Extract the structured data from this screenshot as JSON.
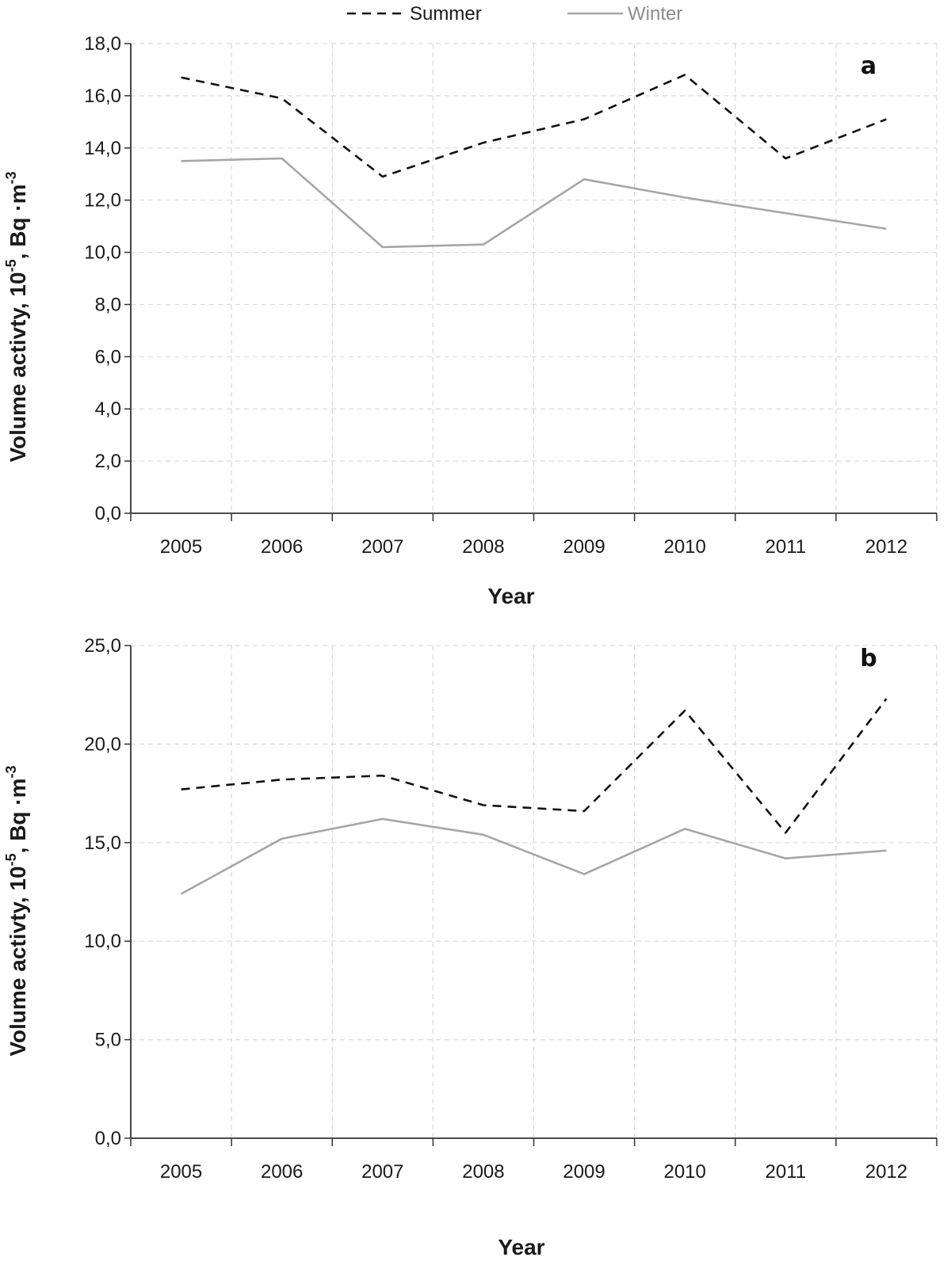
{
  "legend": {
    "summer_label": "Summer",
    "winter_label": "Winter"
  },
  "colors": {
    "summer": "#111111",
    "winter": "#a6a6a6",
    "grid": "#d9d9d9",
    "axis": "#333333"
  },
  "chart_data": [
    {
      "type": "line",
      "panel": "a",
      "categories": [
        "2005",
        "2006",
        "2007",
        "2008",
        "2009",
        "2010",
        "2011",
        "2012"
      ],
      "series": [
        {
          "name": "Summer",
          "style": "dashed",
          "values": [
            16.7,
            15.9,
            12.9,
            14.2,
            15.1,
            16.8,
            13.6,
            15.1
          ]
        },
        {
          "name": "Winter",
          "style": "solid",
          "values": [
            13.5,
            13.6,
            10.2,
            10.3,
            12.8,
            12.1,
            11.5,
            10.9
          ]
        }
      ],
      "ylim": [
        0,
        18
      ],
      "yticks": [
        "0,0",
        "2,0",
        "4,0",
        "6,0",
        "8,0",
        "10,0",
        "12,0",
        "14,0",
        "16,0",
        "18,0"
      ],
      "xlabel": "Year",
      "ylabel": "Volume  activty, 10-5, Bq ·m-3",
      "ylabel_parts": {
        "main": "Volume  activty, 10",
        "sup1": "-5",
        "mid": ", Bq ·m",
        "sup2": "-3"
      },
      "grid": true
    },
    {
      "type": "line",
      "panel": "b",
      "categories": [
        "2005",
        "2006",
        "2007",
        "2008",
        "2009",
        "2010",
        "2011",
        "2012"
      ],
      "series": [
        {
          "name": "Summer",
          "style": "dashed",
          "values": [
            17.7,
            18.2,
            18.4,
            16.9,
            16.6,
            21.7,
            15.5,
            22.3
          ]
        },
        {
          "name": "Winter",
          "style": "solid",
          "values": [
            12.4,
            15.2,
            16.2,
            15.4,
            13.4,
            15.7,
            14.2,
            14.6
          ]
        }
      ],
      "ylim": [
        0,
        25
      ],
      "yticks": [
        "0,0",
        "5,0",
        "10,0",
        "15,0",
        "20,0",
        "25,0"
      ],
      "xlabel": "Year",
      "ylabel": "Volume  activty, 10-5, Bq ·m-3",
      "ylabel_parts": {
        "main": "Volume  activty, 10",
        "sup1": "-5",
        "mid": ", Bq ·m",
        "sup2": "-3"
      },
      "grid": true
    }
  ]
}
